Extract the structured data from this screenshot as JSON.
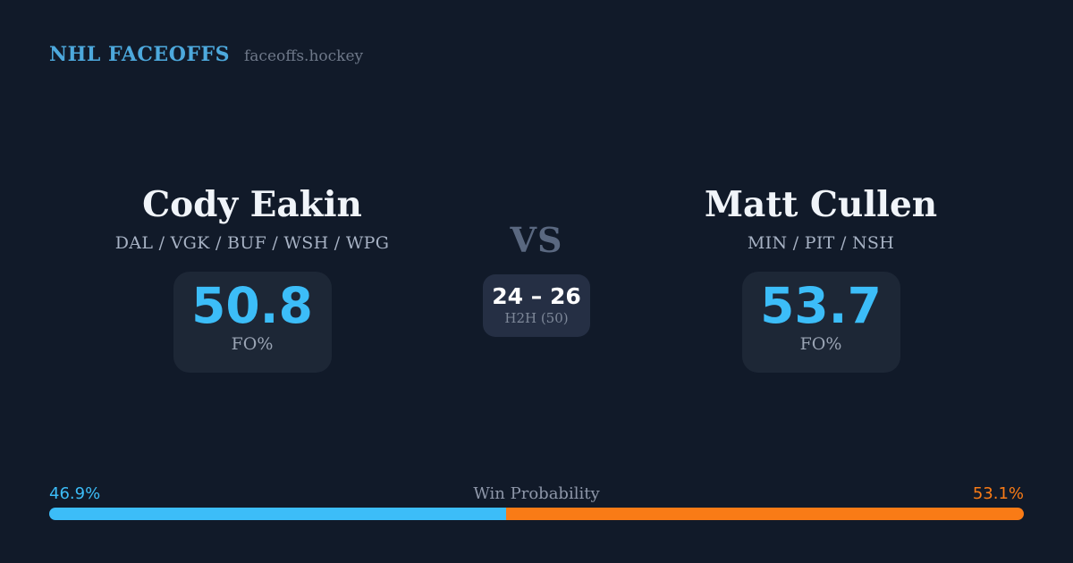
{
  "header": {
    "brand": "NHL FACEOFFS",
    "site": "faceoffs.hockey"
  },
  "player_left": {
    "name": "Cody Eakin",
    "teams": "DAL / VGK / BUF / WSH / WPG",
    "fo_value": "50.8",
    "fo_label": "FO%"
  },
  "player_right": {
    "name": "Matt Cullen",
    "teams": "MIN / PIT / NSH",
    "fo_value": "53.7",
    "fo_label": "FO%"
  },
  "center": {
    "vs_label": "VS",
    "h2h_score": "24 – 26",
    "h2h_label": "H2H (50)"
  },
  "win_probability": {
    "label": "Win Probability",
    "left_pct_text": "46.9%",
    "right_pct_text": "53.1%",
    "left_value": 46.9,
    "right_value": 53.1,
    "left_color": "#3cbdf8",
    "right_color": "#f97b16"
  },
  "colors": {
    "background": "#111a29",
    "card": "#1d2736",
    "accent_blue": "#3cbdf8",
    "accent_orange": "#f97b16",
    "brand_blue": "#4da9dd"
  }
}
